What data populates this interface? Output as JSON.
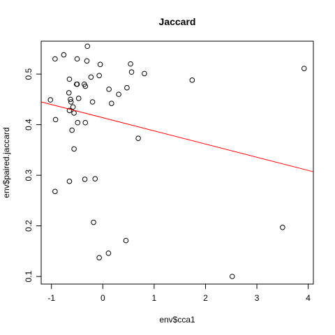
{
  "chart_data": {
    "type": "scatter",
    "title": "Jaccard",
    "xlabel": "env$cca1",
    "ylabel": "env$paired.jaccard",
    "xlim": [
      -1.2,
      4.1
    ],
    "ylim": [
      0.085,
      0.565
    ],
    "xticks": [
      -1,
      0,
      1,
      2,
      3,
      4
    ],
    "yticks": [
      0.1,
      0.2,
      0.3,
      0.4,
      0.5
    ],
    "grid": false,
    "legend": "none",
    "point_color": "#000000",
    "regression_line": {
      "color": "#ff0000",
      "x1": -1.2,
      "y1": 0.445,
      "x2": 4.1,
      "y2": 0.307
    },
    "points": [
      {
        "x": -1.02,
        "y": 0.449
      },
      {
        "x": -0.93,
        "y": 0.53
      },
      {
        "x": -0.92,
        "y": 0.41
      },
      {
        "x": -0.93,
        "y": 0.268
      },
      {
        "x": -0.76,
        "y": 0.538
      },
      {
        "x": -0.66,
        "y": 0.463
      },
      {
        "x": -0.65,
        "y": 0.49
      },
      {
        "x": -0.63,
        "y": 0.45
      },
      {
        "x": -0.62,
        "y": 0.445
      },
      {
        "x": -0.65,
        "y": 0.428
      },
      {
        "x": -0.58,
        "y": 0.435
      },
      {
        "x": -0.56,
        "y": 0.423
      },
      {
        "x": -0.6,
        "y": 0.389
      },
      {
        "x": -0.56,
        "y": 0.352
      },
      {
        "x": -0.65,
        "y": 0.288
      },
      {
        "x": -0.51,
        "y": 0.48
      },
      {
        "x": -0.5,
        "y": 0.48
      },
      {
        "x": -0.5,
        "y": 0.53
      },
      {
        "x": -0.47,
        "y": 0.452
      },
      {
        "x": -0.49,
        "y": 0.404
      },
      {
        "x": -0.36,
        "y": 0.48
      },
      {
        "x": -0.34,
        "y": 0.476
      },
      {
        "x": -0.31,
        "y": 0.526
      },
      {
        "x": -0.3,
        "y": 0.555
      },
      {
        "x": -0.34,
        "y": 0.404
      },
      {
        "x": -0.35,
        "y": 0.292
      },
      {
        "x": -0.23,
        "y": 0.494
      },
      {
        "x": -0.2,
        "y": 0.445
      },
      {
        "x": -0.15,
        "y": 0.293
      },
      {
        "x": -0.18,
        "y": 0.207
      },
      {
        "x": -0.07,
        "y": 0.497
      },
      {
        "x": -0.05,
        "y": 0.519
      },
      {
        "x": -0.07,
        "y": 0.137
      },
      {
        "x": 0.12,
        "y": 0.47
      },
      {
        "x": 0.17,
        "y": 0.442
      },
      {
        "x": 0.11,
        "y": 0.146
      },
      {
        "x": 0.31,
        "y": 0.46
      },
      {
        "x": 0.47,
        "y": 0.473
      },
      {
        "x": 0.54,
        "y": 0.52
      },
      {
        "x": 0.56,
        "y": 0.504
      },
      {
        "x": 0.45,
        "y": 0.171
      },
      {
        "x": 0.69,
        "y": 0.373
      },
      {
        "x": 0.81,
        "y": 0.501
      },
      {
        "x": 1.74,
        "y": 0.488
      },
      {
        "x": 2.52,
        "y": 0.1
      },
      {
        "x": 3.5,
        "y": 0.197
      },
      {
        "x": 3.92,
        "y": 0.511
      }
    ]
  }
}
